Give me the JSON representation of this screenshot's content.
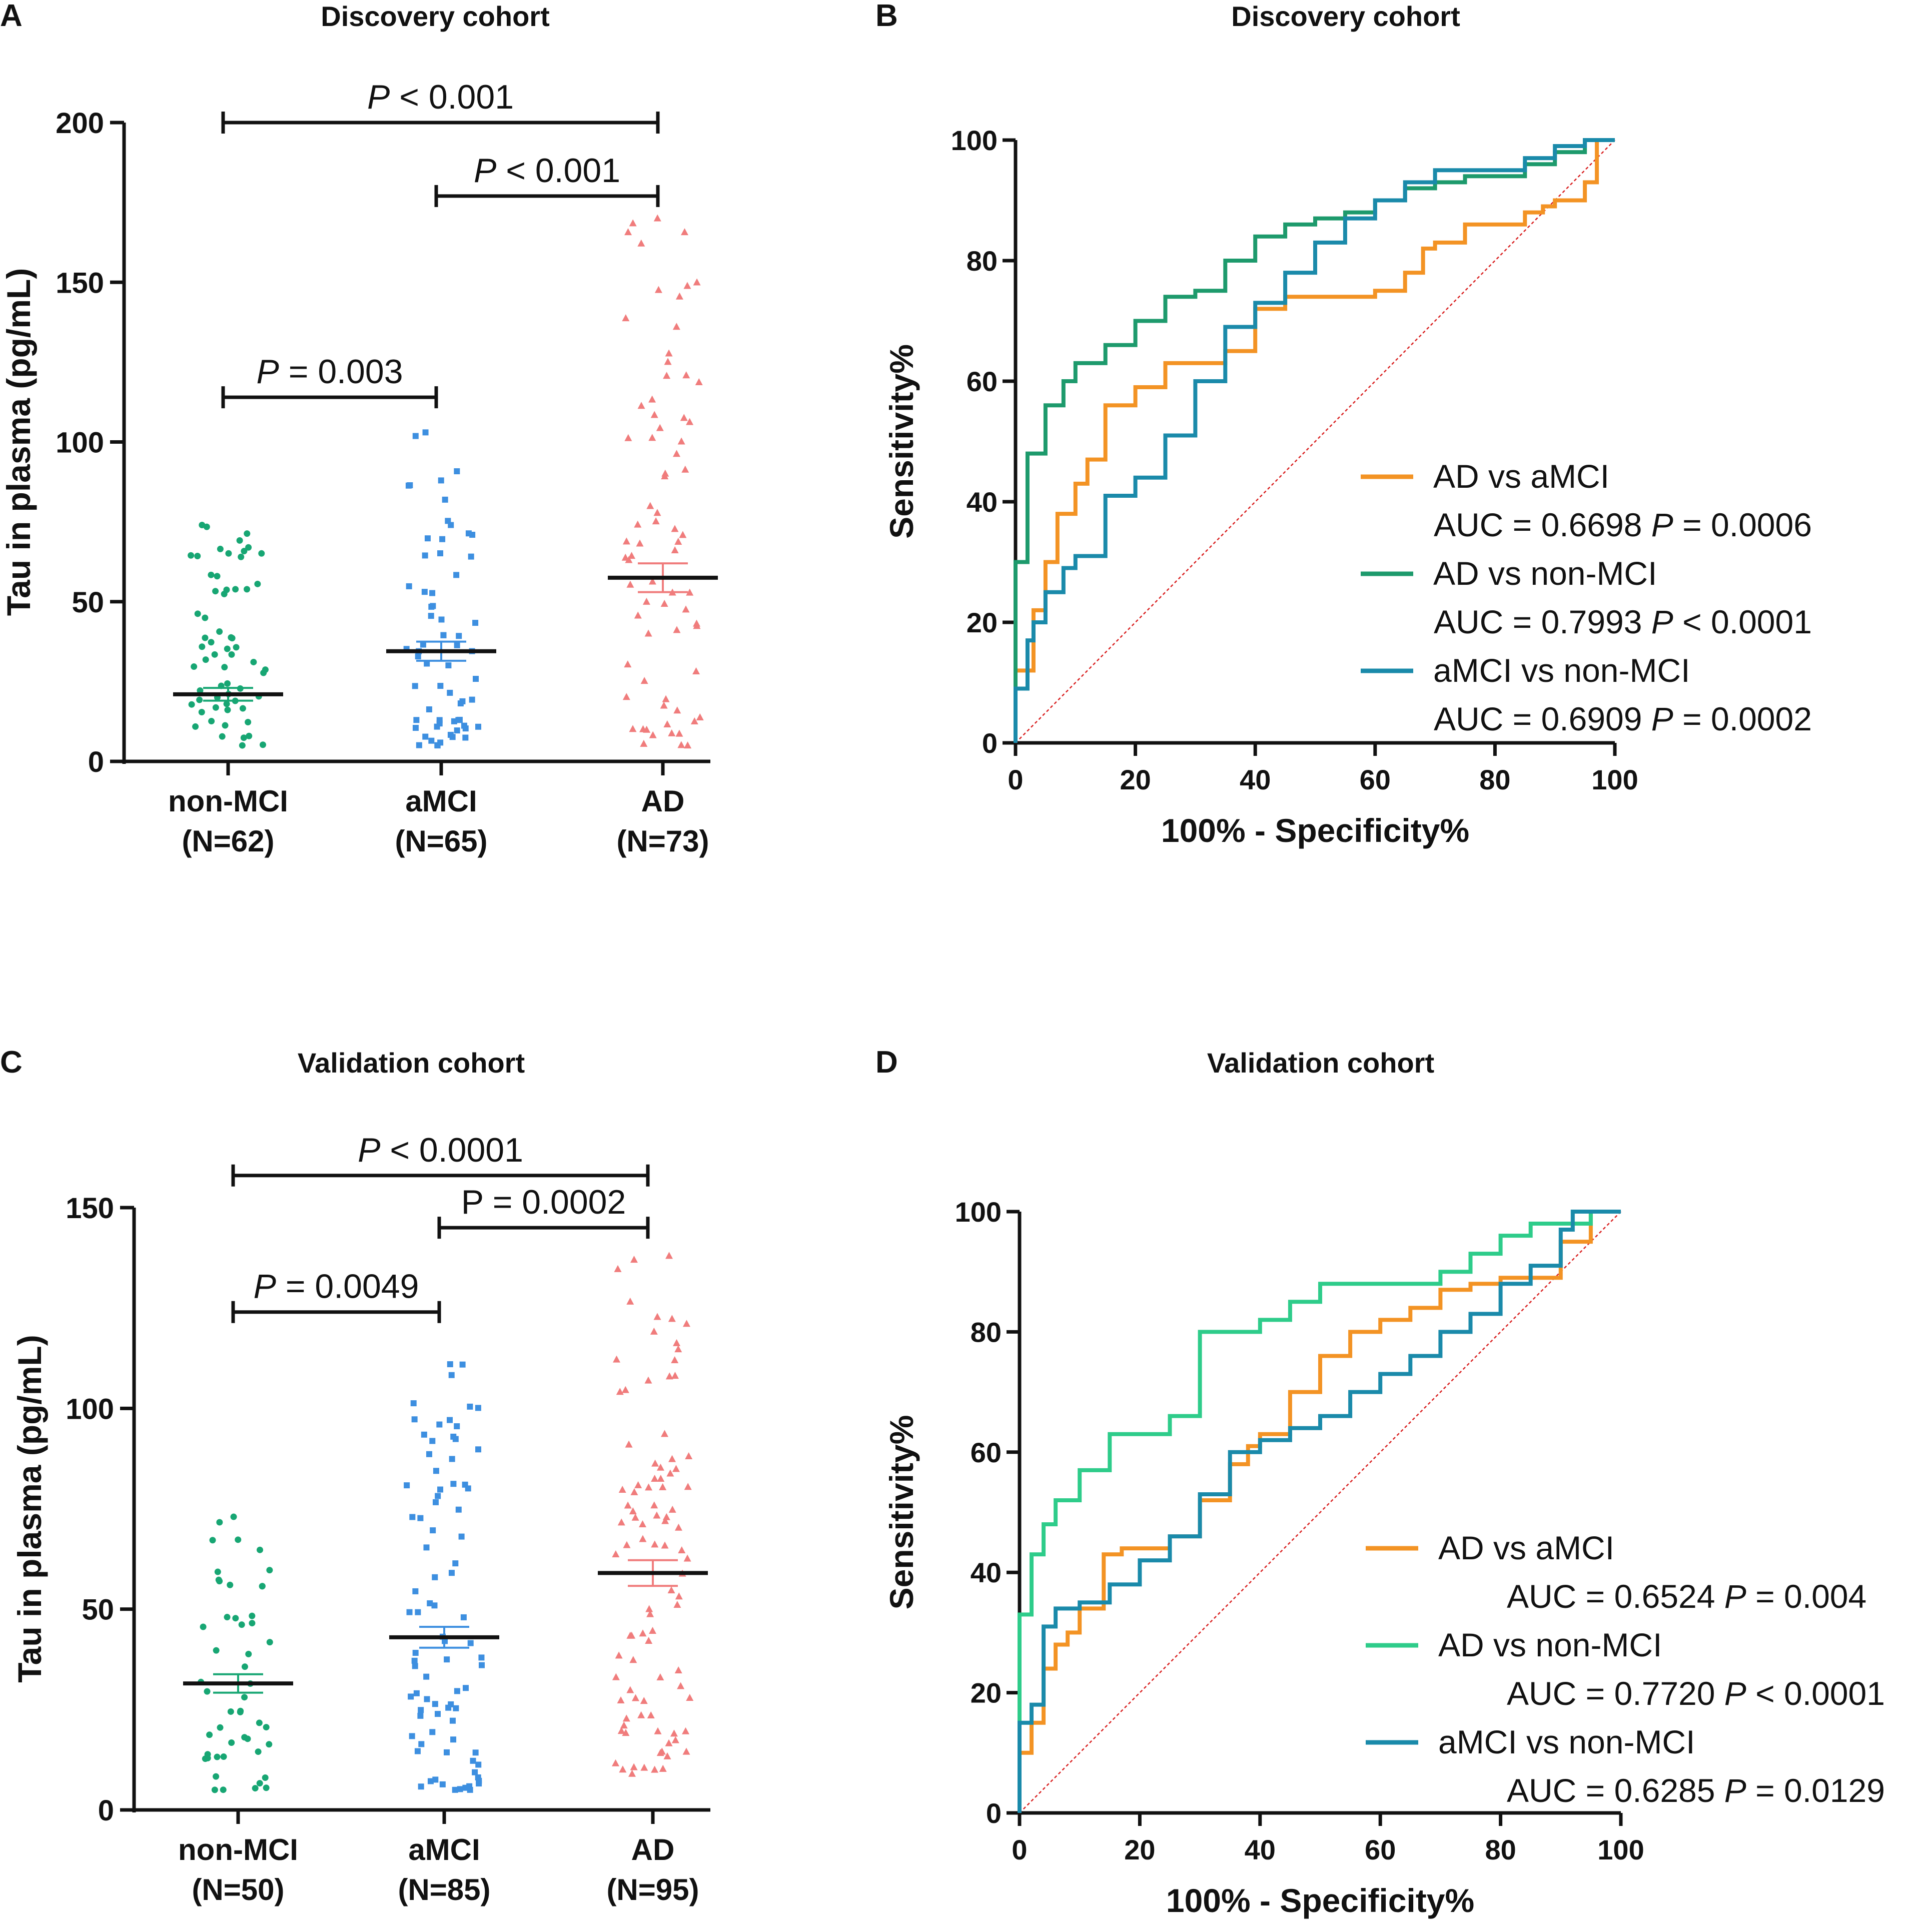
{
  "colors": {
    "nonmci": "#17a673",
    "amci": "#3d8fe0",
    "ad": "#f07c7c",
    "roc_ad_amci": "#f39324",
    "roc_ad_non_discovery": "#1d9a6c",
    "roc_ad_non_validation": "#2ecc8a",
    "roc_amci_non": "#1a8aaa",
    "diagonal": "#d92020"
  },
  "chart_data": [
    {
      "panel": "A",
      "type": "scatter",
      "title": "Discovery cohort",
      "ylabel": "Tau in plasma (pg/mL)",
      "xlabel": "",
      "ylim": [
        0,
        200
      ],
      "yticks": [
        0,
        50,
        100,
        150,
        200
      ],
      "grid": false,
      "groups": [
        {
          "key": "nonmci",
          "name": "non-MCI",
          "n_label": "(N=62)",
          "n": 62,
          "mean": 21,
          "sem": 2,
          "min": 5,
          "max": 74,
          "marker": "circle"
        },
        {
          "key": "amci",
          "name": "aMCI",
          "n_label": "(N=65)",
          "n": 65,
          "mean": 34.5,
          "sem": 3,
          "min": 5,
          "max": 103,
          "marker": "square"
        },
        {
          "key": "ad",
          "name": "AD",
          "n_label": "(N=73)",
          "n": 73,
          "mean": 57.5,
          "sem": 4.5,
          "min": 5,
          "max": 170,
          "marker": "triangle"
        }
      ],
      "comparisons": [
        {
          "from": 0,
          "to": 2,
          "y": 200,
          "italic": "P",
          "text": " < 0.001"
        },
        {
          "from": 1,
          "to": 2,
          "y": 177,
          "italic": "P",
          "text": " < 0.001"
        },
        {
          "from": 0,
          "to": 1,
          "y": 114,
          "italic": "P",
          "text": " = 0.003"
        }
      ]
    },
    {
      "panel": "B",
      "type": "line",
      "title": "Discovery cohort",
      "xlabel": "100% - Specificity%",
      "ylabel": "Sensitivity%",
      "xlim": [
        0,
        100
      ],
      "ylim": [
        0,
        100
      ],
      "xticks": [
        0,
        20,
        40,
        60,
        80,
        100
      ],
      "yticks": [
        0,
        20,
        40,
        60,
        80,
        100
      ],
      "grid": false,
      "legend_position": "right",
      "series": [
        {
          "name": "AD vs aMCI",
          "color_key": "roc_ad_amci",
          "auc_text": "AUC = 0.6698",
          "p_italic": "P",
          "p_text": " = 0.0006",
          "x": [
            0,
            0,
            3,
            3,
            5,
            7,
            10,
            12,
            15,
            20,
            25,
            30,
            35,
            40,
            45,
            50,
            60,
            65,
            68,
            70,
            75,
            80,
            85,
            88,
            90,
            92,
            95,
            97,
            100
          ],
          "y": [
            0,
            12,
            12,
            18,
            22,
            30,
            38,
            43,
            47,
            56,
            59,
            63,
            63,
            65,
            72,
            74,
            74,
            75,
            78,
            82,
            83,
            86,
            86,
            88,
            89,
            90,
            90,
            93,
            100
          ]
        },
        {
          "name": "AD vs non-MCI",
          "color_key": "roc_ad_non_discovery",
          "auc_text": "AUC = 0.7993",
          "p_italic": "P",
          "p_text": " < 0.0001",
          "x": [
            0,
            0,
            2,
            3,
            5,
            8,
            10,
            12,
            15,
            20,
            25,
            30,
            35,
            40,
            45,
            50,
            55,
            60,
            65,
            70,
            75,
            80,
            85,
            90,
            95,
            100
          ],
          "y": [
            0,
            28,
            30,
            48,
            48,
            56,
            60,
            63,
            63,
            66,
            70,
            74,
            75,
            80,
            84,
            86,
            87,
            88,
            90,
            92,
            93,
            94,
            94,
            96,
            98,
            100
          ]
        },
        {
          "name": "aMCI vs non-MCI",
          "color_key": "roc_amci_non",
          "auc_text": "AUC = 0.6909",
          "p_italic": "P",
          "p_text": " = 0.0002",
          "x": [
            0,
            0,
            2,
            3,
            5,
            8,
            10,
            15,
            20,
            25,
            30,
            35,
            40,
            45,
            50,
            55,
            60,
            65,
            70,
            75,
            80,
            85,
            90,
            95,
            100
          ],
          "y": [
            0,
            7,
            9,
            17,
            20,
            25,
            29,
            31,
            41,
            44,
            51,
            60,
            69,
            73,
            78,
            83,
            87,
            90,
            93,
            95,
            95,
            95,
            97,
            99,
            100
          ]
        }
      ]
    },
    {
      "panel": "C",
      "type": "scatter",
      "title": "Validation cohort",
      "ylabel": "Tau in plasma (pg/mL)",
      "xlabel": "",
      "ylim": [
        0,
        150
      ],
      "yticks": [
        0,
        50,
        100,
        150
      ],
      "grid": false,
      "groups": [
        {
          "key": "nonmci",
          "name": "non-MCI",
          "n_label": "(N=50)",
          "n": 50,
          "mean": 31.5,
          "sem": 2.3,
          "min": 5,
          "max": 73,
          "marker": "circle"
        },
        {
          "key": "amci",
          "name": "aMCI",
          "n_label": "(N=85)",
          "n": 85,
          "mean": 43,
          "sem": 2.6,
          "min": 5,
          "max": 111,
          "marker": "square"
        },
        {
          "key": "ad",
          "name": "AD",
          "n_label": "(N=95)",
          "n": 95,
          "mean": 59,
          "sem": 3.2,
          "min": 9,
          "max": 138,
          "marker": "triangle"
        }
      ],
      "comparisons": [
        {
          "from": 0,
          "to": 2,
          "y": 158,
          "italic": "P",
          "text": " < 0.0001"
        },
        {
          "from": 1,
          "to": 2,
          "y": 145,
          "italic": "",
          "text": "P = 0.0002"
        },
        {
          "from": 0,
          "to": 1,
          "y": 124,
          "italic": "P",
          "text": " = 0.0049"
        }
      ]
    },
    {
      "panel": "D",
      "type": "line",
      "title": "Validation cohort",
      "xlabel": "100% - Specificity%",
      "ylabel": "Sensitivity%",
      "xlim": [
        0,
        100
      ],
      "ylim": [
        0,
        100
      ],
      "xticks": [
        0,
        20,
        40,
        60,
        80,
        100
      ],
      "yticks": [
        0,
        20,
        40,
        60,
        80,
        100
      ],
      "grid": false,
      "legend_position": "bottom-right",
      "series": [
        {
          "name": "AD vs aMCI",
          "color_key": "roc_ad_amci",
          "auc_text": "AUC = 0.6524",
          "p_italic": "P",
          "p_text": " = 0.004",
          "x": [
            0,
            0,
            2,
            4,
            6,
            8,
            10,
            14,
            17,
            20,
            25,
            30,
            35,
            38,
            40,
            45,
            50,
            55,
            60,
            65,
            70,
            75,
            80,
            85,
            90,
            95,
            100
          ],
          "y": [
            0,
            7,
            10,
            15,
            24,
            28,
            30,
            34,
            43,
            44,
            44,
            46,
            52,
            58,
            61,
            63,
            70,
            76,
            80,
            82,
            84,
            87,
            88,
            89,
            89,
            95,
            100
          ]
        },
        {
          "name": "AD vs non-MCI",
          "color_key": "roc_ad_non_validation",
          "auc_text": "AUC = 0.7720",
          "p_italic": "P",
          "p_text": " < 0.0001",
          "x": [
            0,
            0,
            2,
            4,
            6,
            10,
            15,
            20,
            25,
            30,
            35,
            40,
            45,
            50,
            55,
            60,
            65,
            70,
            75,
            80,
            85,
            90,
            95,
            100
          ],
          "y": [
            0,
            31,
            33,
            43,
            48,
            52,
            57,
            63,
            63,
            66,
            80,
            80,
            82,
            85,
            88,
            88,
            88,
            88,
            90,
            93,
            96,
            98,
            98,
            100
          ]
        },
        {
          "name": "aMCI vs non-MCI",
          "color_key": "roc_amci_non",
          "auc_text": "AUC = 0.6285",
          "p_italic": "P",
          "p_text": " = 0.0129",
          "x": [
            0,
            0,
            2,
            4,
            6,
            10,
            15,
            20,
            25,
            30,
            35,
            40,
            45,
            50,
            55,
            60,
            65,
            70,
            75,
            80,
            85,
            90,
            92,
            94,
            100
          ],
          "y": [
            0,
            14,
            15,
            18,
            31,
            34,
            35,
            38,
            42,
            46,
            53,
            60,
            62,
            64,
            66,
            70,
            73,
            76,
            80,
            83,
            88,
            91,
            97,
            100,
            100
          ]
        }
      ]
    }
  ],
  "panels": {
    "A": {
      "letter": "A"
    },
    "B": {
      "letter": "B"
    },
    "C": {
      "letter": "C"
    },
    "D": {
      "letter": "D"
    }
  }
}
